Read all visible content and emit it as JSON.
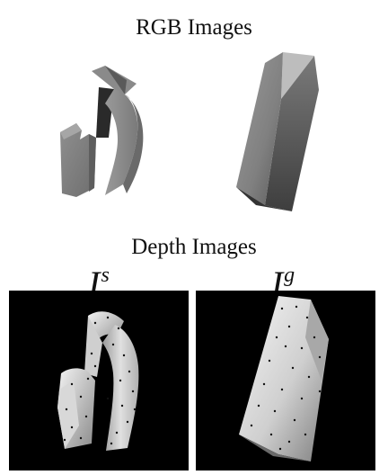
{
  "rgb_section": {
    "title": "RGB Images"
  },
  "depth_section": {
    "title": "Depth Images",
    "left_panel": {
      "symbol": "I",
      "superscript": "s"
    },
    "right_panel": {
      "symbol": "I",
      "superscript": "g"
    }
  },
  "colors": {
    "background": "#ffffff",
    "panel_background": "#000000",
    "keypoint": "#000000"
  }
}
